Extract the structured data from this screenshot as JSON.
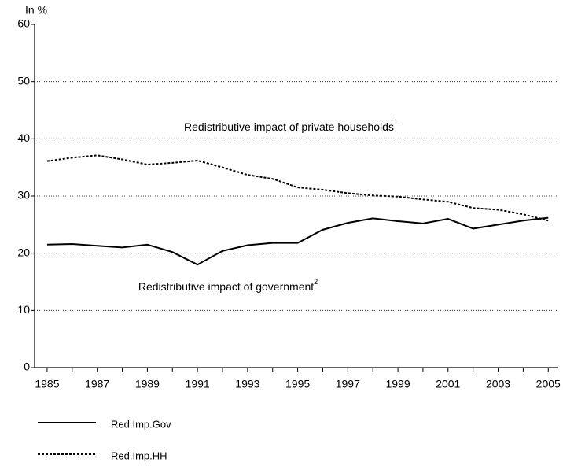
{
  "chart_data": {
    "type": "line",
    "y_label": "In %",
    "x": [
      1985,
      1986,
      1987,
      1988,
      1989,
      1990,
      1991,
      1992,
      1993,
      1994,
      1995,
      1996,
      1997,
      1998,
      1999,
      2000,
      2001,
      2002,
      2003,
      2004,
      2005
    ],
    "series": [
      {
        "name": "Red.Imp.Gov",
        "color": "#000000",
        "dash": "solid",
        "values": [
          21.5,
          21.6,
          21.3,
          21.0,
          21.5,
          20.2,
          18.0,
          20.4,
          21.4,
          21.8,
          21.8,
          24.1,
          25.3,
          26.1,
          25.6,
          25.2,
          26.0,
          24.3,
          25.0,
          25.7,
          26.2
        ]
      },
      {
        "name": "Red.Imp.HH",
        "color": "#000000",
        "dash": "dotted",
        "values": [
          36.1,
          36.7,
          37.1,
          36.4,
          35.5,
          35.8,
          36.2,
          35.0,
          33.7,
          33.0,
          31.5,
          31.1,
          30.5,
          30.1,
          29.9,
          29.4,
          29.0,
          27.9,
          27.6,
          26.8,
          25.7
        ]
      }
    ],
    "annotations": [
      {
        "text": "Redistributive impact of private households",
        "sup": "1"
      },
      {
        "text": "Redistributive impact of government",
        "sup": "2"
      }
    ],
    "xlim": [
      1984.5,
      2005.4
    ],
    "xticks": [
      1985,
      1987,
      1989,
      1991,
      1993,
      1995,
      1997,
      1999,
      2001,
      2003,
      2005
    ],
    "ylim": [
      0,
      60
    ],
    "yticks": [
      0,
      10,
      20,
      30,
      40,
      50,
      60
    ],
    "grid": true,
    "legend": "bottom"
  }
}
